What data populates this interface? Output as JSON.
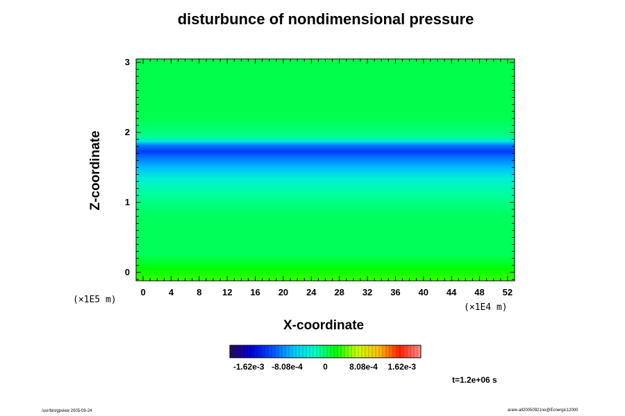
{
  "chart_data": {
    "type": "heatmap",
    "title": "disturbunce of nondimensional pressure",
    "xlabel": "X-coordinate",
    "ylabel": "Z-coordinate",
    "x_ticks": [
      "0",
      "4",
      "8",
      "12",
      "16",
      "20",
      "24",
      "28",
      "32",
      "36",
      "40",
      "44",
      "48",
      "52"
    ],
    "y_ticks": [
      "0",
      "1",
      "2",
      "3"
    ],
    "x_unit": "(×1E4 m)",
    "y_unit": "(×1E5 m)",
    "xlim": [
      -1,
      53
    ],
    "ylim": [
      -0.12,
      3.05
    ],
    "colorbar": {
      "tick_labels": [
        "-1.62e-3",
        "-8.08e-4",
        "0",
        "8.08e-4",
        "1.62e-3"
      ],
      "range": [
        -0.00202,
        0.00202
      ]
    },
    "profile_z": [
      -0.12,
      0.05,
      0.25,
      0.8,
      1.1,
      1.35,
      1.5,
      1.65,
      1.73,
      1.82,
      1.87,
      1.95,
      2.2,
      3.05
    ],
    "profile_value": [
      0.00035,
      0.00022,
      3e-05,
      2e-05,
      -0.00012,
      -0.00036,
      -0.00072,
      -0.00101,
      -0.00124,
      -0.00095,
      -0.0004,
      -8e-05,
      5e-05,
      6e-05
    ],
    "time_label": "t=1.2e+06 s"
  },
  "footer": {
    "left": "/usr/bin/gpview 2005-09-24",
    "right": "arare-all20050921no@Ecnergic12000"
  },
  "colors": {
    "palette": [
      "#2a0a55",
      "#0000d8",
      "#0050ff",
      "#00c8ff",
      "#00ffc8",
      "#00ff00",
      "#c8ff00",
      "#ffc000",
      "#ff2000",
      "#ff9090"
    ]
  }
}
